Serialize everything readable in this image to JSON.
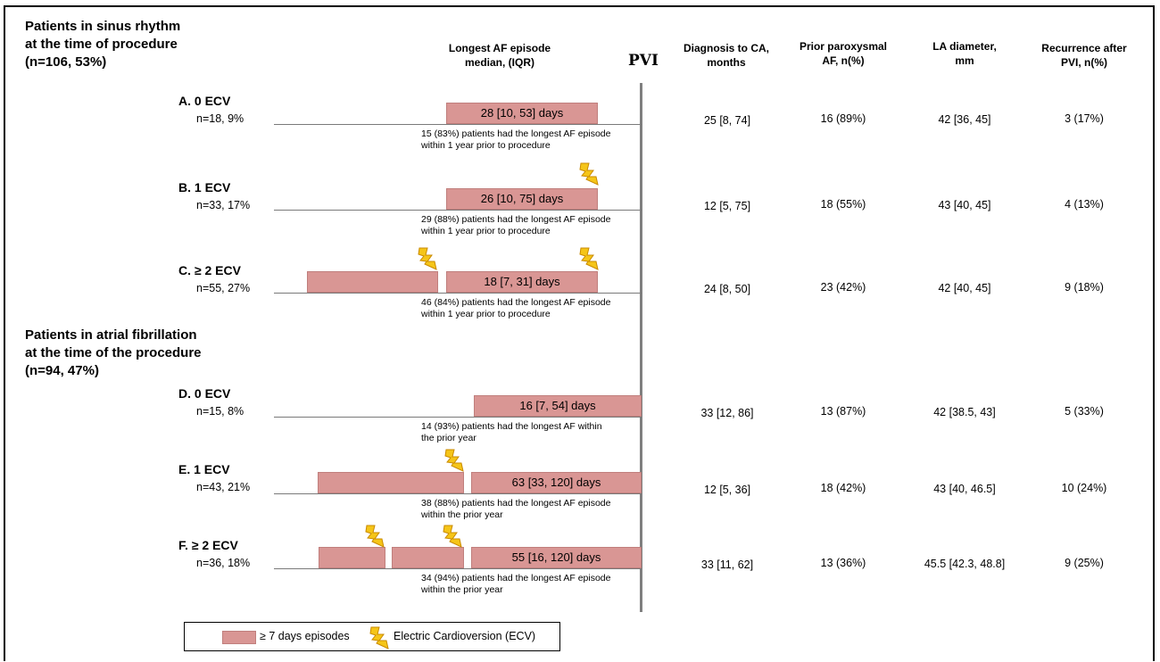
{
  "sections": {
    "sinus": {
      "title_line1": "Patients in sinus rhythm",
      "title_line2": "at the time of procedure",
      "title_line3": "(n=106, 53%)"
    },
    "af": {
      "title_line1": "Patients in atrial fibrillation",
      "title_line2": "at the time of the procedure",
      "title_line3": "(n=94, 47%)"
    }
  },
  "headers": {
    "longest_line1": "Longest AF episode",
    "longest_line2": "median, (IQR)",
    "pvi": "PVI",
    "diagnosis_line1": "Diagnosis to CA,",
    "diagnosis_line2": "months",
    "prior_line1": "Prior paroxysmal",
    "prior_line2": "AF, n(%)",
    "la_line1": "LA diameter,",
    "la_line2": "mm",
    "recurrence_line1": "Recurrence after",
    "recurrence_line2": "PVI, n(%)"
  },
  "groups": [
    {
      "label": "A. 0 ECV",
      "n": "n=18, 9%",
      "ecv_count": 0,
      "extra_episode_bars": 0,
      "episode": "28 [10, 53] days",
      "note_line1": "15 (83%) patients had the longest AF episode",
      "note_line2": "within 1 year prior to procedure",
      "diagnosis": "25 [8, 74]",
      "prior": "16 (89%)",
      "la": "42 [36, 45]",
      "recurrence": "3 (17%)"
    },
    {
      "label": "B. 1 ECV",
      "n": "n=33, 17%",
      "ecv_count": 1,
      "extra_episode_bars": 0,
      "episode": "26 [10, 75] days",
      "note_line1": "29 (88%) patients had the longest AF episode",
      "note_line2": "within 1 year prior to procedure",
      "diagnosis": "12 [5, 75]",
      "prior": "18 (55%)",
      "la": "43 [40, 45]",
      "recurrence": "4 (13%)"
    },
    {
      "label": "C. ≥ 2 ECV",
      "n": "n=55, 27%",
      "ecv_count": 2,
      "extra_episode_bars": 1,
      "episode": "18 [7, 31] days",
      "note_line1": "46 (84%) patients had the longest AF episode",
      "note_line2": "within 1 year prior to procedure",
      "diagnosis": "24 [8, 50]",
      "prior": "23 (42%)",
      "la": "42 [40, 45]",
      "recurrence": "9 (18%)"
    },
    {
      "label": "D. 0 ECV",
      "n": "n=15, 8%",
      "ecv_count": 0,
      "extra_episode_bars": 0,
      "episode": "16 [7, 54] days",
      "note_line1": "14 (93%) patients had the longest AF within",
      "note_line2": "the prior year",
      "diagnosis": "33 [12, 86]",
      "prior": "13 (87%)",
      "la": "42 [38.5, 43]",
      "recurrence": "5 (33%)"
    },
    {
      "label": "E. 1 ECV",
      "n": "n=43, 21%",
      "ecv_count": 1,
      "extra_episode_bars": 1,
      "episode": "63 [33, 120] days",
      "note_line1": "38 (88%) patients had the longest AF episode",
      "note_line2": "within the prior year",
      "diagnosis": "12 [5, 36]",
      "prior": "18 (42%)",
      "la": "43 [40, 46.5]",
      "recurrence": "10 (24%)"
    },
    {
      "label": "F. ≥ 2 ECV",
      "n": "n=36, 18%",
      "ecv_count": 2,
      "extra_episode_bars": 2,
      "episode": "55 [16, 120] days",
      "note_line1": "34 (94%) patients had the longest AF episode",
      "note_line2": "within the prior year",
      "diagnosis": "33 [11, 62]",
      "prior": "13 (36%)",
      "la": "45.5 [42.3, 48.8]",
      "recurrence": "9 (25%)"
    }
  ],
  "legend": {
    "episode_label": "≥ 7 days episodes",
    "ecv_label": "Electric Cardioversion (ECV)"
  },
  "colors": {
    "episode_bar": "#d99694",
    "bolt_fill": "#f5c518",
    "bolt_stroke": "#c98a00",
    "pvi_line": "#7f7f7f"
  }
}
